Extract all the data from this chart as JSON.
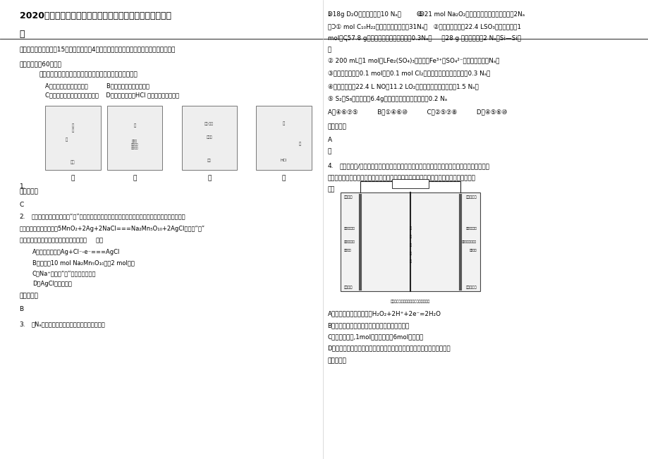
{
  "title_line1": "2020年河南省三门峡市第一初级中学高三化学模拟试题含解",
  "title_line2": "析",
  "section1_line1": "一、单选题（本大题共15个小题，每小题4分。在每小题给出的四个选项中，只有一项符合",
  "section1_line2": "题目要求，共60分。）",
  "q1_intro": "用下列实验装置进行的实验中，不能达到相应实验目的的是",
  "q1_optA": "A．装置甲：防止铁钉生锈          B．装置乙：可制得金属锄",
  "q1_optC": "C．装置丙：实验室制取乙酸乙酯    D．装置丁：验证HCl 气体在水中的溶解性",
  "labels": [
    "甲",
    "乙",
    "丙",
    "丁"
  ],
  "q1_num": "1.",
  "ref1_label": "参考答案：",
  "ans1": "C",
  "q2_num": "2.",
  "q2_line1": "研究人员最近发现了一种“水”电池，这种电池能利用淡水与海水之间含盐量差别进行发电，在海水",
  "q2_line2": "中电池总反应可表示为：5MnO₂+2Ag+2NaCl===Na₂Mn₅O₁₀+2AgCl，下列“水”",
  "q2_line3": "电池在海水中放电时的有关说法正确的是（     ）。",
  "q2_optA": "A．正极反应式：Ag+Cl⁻-e⁻===AgCl",
  "q2_optB": "B．每生戕10 mol Na₂Mn₅O₁₀转移2 mol电子",
  "q2_optC": "C．Na⁺不断向“水”电池的负极移动",
  "q2_optD": "D．AgCl是还原产物",
  "ref2_label": "参考答案：",
  "ans2": "B",
  "q3_num": "3.",
  "q3_text": "用Nₐ表示阿伏加德罗常数，下列说法正确的是",
  "r1": "ↁ18g D₂O含有电子数为10 Nₐ；        ↂ21 mol Na₂O₂与水完全反应时转移电子数为2Nₐ",
  "r2": "；Ↄ① mol C₁₀H₂₂分子中共价键总数为31Nₐ；   ②在标准状况下，22.4 LSO₃的物质的量为1",
  "r3": "mol；ↅ57.8 g过氧化钓中含有的离子数为0.3Nₐ；     ↆ28 g 硅晶体中含朄2 Nₐ个Si—Si键",
  "r4": "；",
  "r5": "② 200 mL，1 mol／LFe₂(SO₄)₃溶液中，Fe³⁺和SO₄²⁻离子数的总和是Nₐ；",
  "r6": "③在常温常压下，0.1 mol铁与0.1 mol Cl₂充分反应，转移的电子数为0.3 Nₐ；",
  "r7": "④标准状况下，22.4 L NO和11.2 LO₂混合后气体的分子总数为1.5 Nₐ；",
  "r8": "⑤ S₂和S₈的混合物六6.4g，其中所含硫原子数一定为0.2 Nₐ",
  "r9": "A．④⑥⑦⑤          B．①④⑥⑩          C．②⑤⑦⑧          D．④⑤⑥⑩",
  "ref3_label": "参考答案：",
  "ans3": "A",
  "extra3": "略",
  "q4_num": "4.",
  "q4_line1": "右图是甲醇/过氧化氢燃料电池内部结构示意图，工作时，甲醇和过氧化氢分别进入燃料电池",
  "q4_line2": "的燃料腔和氧化剂腔，在各自催化剂的作用下发生反应，并向外界输出电能，下列说法正确",
  "q4_line3": "的是",
  "q4_optA": "A．该电池的正极反应式：H₂O₂+2H⁺+2e⁻=2H₂O",
  "q4_optB": "B．燃料腔中的多孔石墨电极为该燃料电池的正极",
  "q4_optC": "C．电池工作时,1mol甲醇被还原有6mol电子转移",
  "q4_optD": "D．电路中的电子经正极、负极、离子交换膜后再回到正极，形成闭合回路",
  "ref4_label": "参考答案：",
  "bg_color": "#ffffff"
}
